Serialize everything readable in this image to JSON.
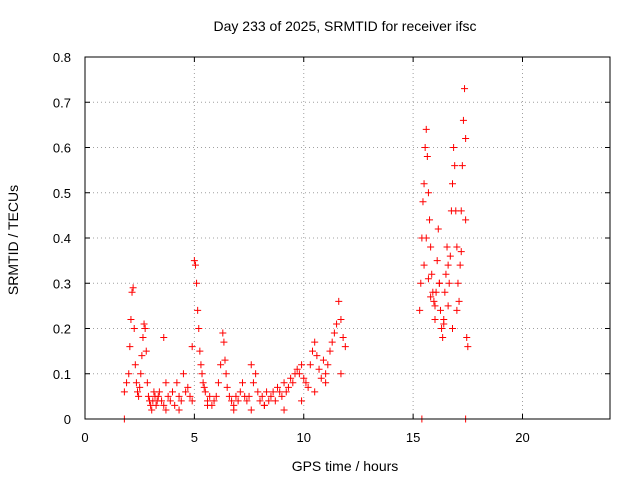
{
  "colors": {
    "series": "#ff0000",
    "grid": "#a0a0a0",
    "axis": "#000000"
  },
  "chart_data": {
    "type": "scatter",
    "title": "Day 233 of 2025, SRMTID for receiver ifsc",
    "xlabel": "GPS time / hours",
    "ylabel": "SRMTID / TECUs",
    "xlim": [
      0,
      24
    ],
    "ylim": [
      0,
      0.8
    ],
    "xticks": [
      0,
      5,
      10,
      15,
      20
    ],
    "yticks": [
      0,
      0.1,
      0.2,
      0.3,
      0.4,
      0.5,
      0.6,
      0.7,
      0.8
    ],
    "xtick_labels": [
      "0",
      "5",
      "10",
      "15",
      "20"
    ],
    "ytick_labels": [
      "0",
      "0.1",
      "0.2",
      "0.3",
      "0.4",
      "0.5",
      "0.6",
      "0.7",
      "0.8"
    ],
    "grid": true,
    "marker": "+",
    "series": [
      {
        "name": "SRMTID",
        "x": [
          1.8,
          1.9,
          2.0,
          2.05,
          2.1,
          2.15,
          2.2,
          2.25,
          2.3,
          2.35,
          2.4,
          2.45,
          2.5,
          2.55,
          2.6,
          2.65,
          2.7,
          2.75,
          2.8,
          2.85,
          2.9,
          2.95,
          3.0,
          3.05,
          3.1,
          3.15,
          3.2,
          3.25,
          3.3,
          3.35,
          3.4,
          3.5,
          3.6,
          3.7,
          3.8,
          3.9,
          4.0,
          4.1,
          4.2,
          4.3,
          4.4,
          4.5,
          4.6,
          4.7,
          4.8,
          4.9,
          5.0,
          5.05,
          5.1,
          5.15,
          5.2,
          5.25,
          5.3,
          5.35,
          5.4,
          5.45,
          5.5,
          5.6,
          5.7,
          5.8,
          5.9,
          6.0,
          6.1,
          6.2,
          6.3,
          6.35,
          6.4,
          6.45,
          6.5,
          6.6,
          6.7,
          6.8,
          6.9,
          7.0,
          7.1,
          7.2,
          7.3,
          7.4,
          7.5,
          7.6,
          7.7,
          7.8,
          7.9,
          8.0,
          8.1,
          8.2,
          8.3,
          8.4,
          8.5,
          8.6,
          8.7,
          8.8,
          8.9,
          9.0,
          9.1,
          9.2,
          9.3,
          9.4,
          9.5,
          9.6,
          9.7,
          9.8,
          9.9,
          10.0,
          10.1,
          10.2,
          10.3,
          10.4,
          10.5,
          10.6,
          10.7,
          10.8,
          10.9,
          11.0,
          11.1,
          11.2,
          11.3,
          11.4,
          11.5,
          11.6,
          11.7,
          11.8,
          11.9,
          3.6,
          3.7,
          4.3,
          4.9,
          5.6,
          6.8,
          7.6,
          8.2,
          9.1,
          9.9,
          10.5,
          11.0,
          11.7,
          15.3,
          15.35,
          15.4,
          15.45,
          15.5,
          15.55,
          15.6,
          15.65,
          15.7,
          15.75,
          15.8,
          15.85,
          15.9,
          15.95,
          16.0,
          16.05,
          16.1,
          16.15,
          16.2,
          16.25,
          16.3,
          16.35,
          16.4,
          16.45,
          16.5,
          16.55,
          16.6,
          16.65,
          16.7,
          16.75,
          16.8,
          16.85,
          16.9,
          16.95,
          17.0,
          17.05,
          17.1,
          17.15,
          17.2,
          17.25,
          17.3,
          17.35,
          17.4,
          17.45,
          17.5,
          15.5,
          15.6,
          15.7,
          15.8,
          16.0,
          16.2,
          16.4,
          16.6,
          16.8,
          17.0,
          17.2,
          17.4,
          1.8,
          15.4,
          17.4
        ],
        "y": [
          0.06,
          0.08,
          0.1,
          0.16,
          0.22,
          0.28,
          0.29,
          0.2,
          0.12,
          0.08,
          0.06,
          0.05,
          0.07,
          0.1,
          0.14,
          0.18,
          0.21,
          0.2,
          0.15,
          0.08,
          0.05,
          0.04,
          0.03,
          0.02,
          0.04,
          0.06,
          0.05,
          0.03,
          0.04,
          0.05,
          0.06,
          0.04,
          0.18,
          0.08,
          0.05,
          0.04,
          0.06,
          0.03,
          0.08,
          0.05,
          0.04,
          0.1,
          0.06,
          0.07,
          0.05,
          0.16,
          0.35,
          0.34,
          0.3,
          0.24,
          0.2,
          0.15,
          0.12,
          0.1,
          0.08,
          0.07,
          0.06,
          0.04,
          0.05,
          0.03,
          0.04,
          0.05,
          0.08,
          0.12,
          0.19,
          0.17,
          0.13,
          0.1,
          0.07,
          0.05,
          0.04,
          0.03,
          0.05,
          0.04,
          0.06,
          0.08,
          0.05,
          0.04,
          0.05,
          0.12,
          0.08,
          0.1,
          0.06,
          0.04,
          0.05,
          0.03,
          0.06,
          0.04,
          0.05,
          0.06,
          0.04,
          0.07,
          0.06,
          0.05,
          0.08,
          0.06,
          0.07,
          0.09,
          0.08,
          0.1,
          0.11,
          0.1,
          0.12,
          0.09,
          0.08,
          0.07,
          0.12,
          0.15,
          0.17,
          0.14,
          0.11,
          0.09,
          0.13,
          0.1,
          0.12,
          0.15,
          0.17,
          0.19,
          0.21,
          0.26,
          0.22,
          0.18,
          0.16,
          0.03,
          0.02,
          0.02,
          0.04,
          0.03,
          0.02,
          0.02,
          0.03,
          0.02,
          0.04,
          0.06,
          0.08,
          0.1,
          0.24,
          0.3,
          0.4,
          0.48,
          0.52,
          0.6,
          0.64,
          0.58,
          0.5,
          0.44,
          0.38,
          0.32,
          0.28,
          0.26,
          0.25,
          0.28,
          0.35,
          0.42,
          0.3,
          0.24,
          0.2,
          0.18,
          0.22,
          0.28,
          0.32,
          0.38,
          0.34,
          0.3,
          0.36,
          0.46,
          0.52,
          0.6,
          0.56,
          0.46,
          0.38,
          0.3,
          0.26,
          0.34,
          0.46,
          0.56,
          0.66,
          0.73,
          0.62,
          0.18,
          0.16,
          0.34,
          0.4,
          0.31,
          0.27,
          0.22,
          0.3,
          0.21,
          0.25,
          0.2,
          0.24,
          0.37,
          0.44,
          0.0,
          0.0,
          0.0
        ]
      }
    ]
  }
}
